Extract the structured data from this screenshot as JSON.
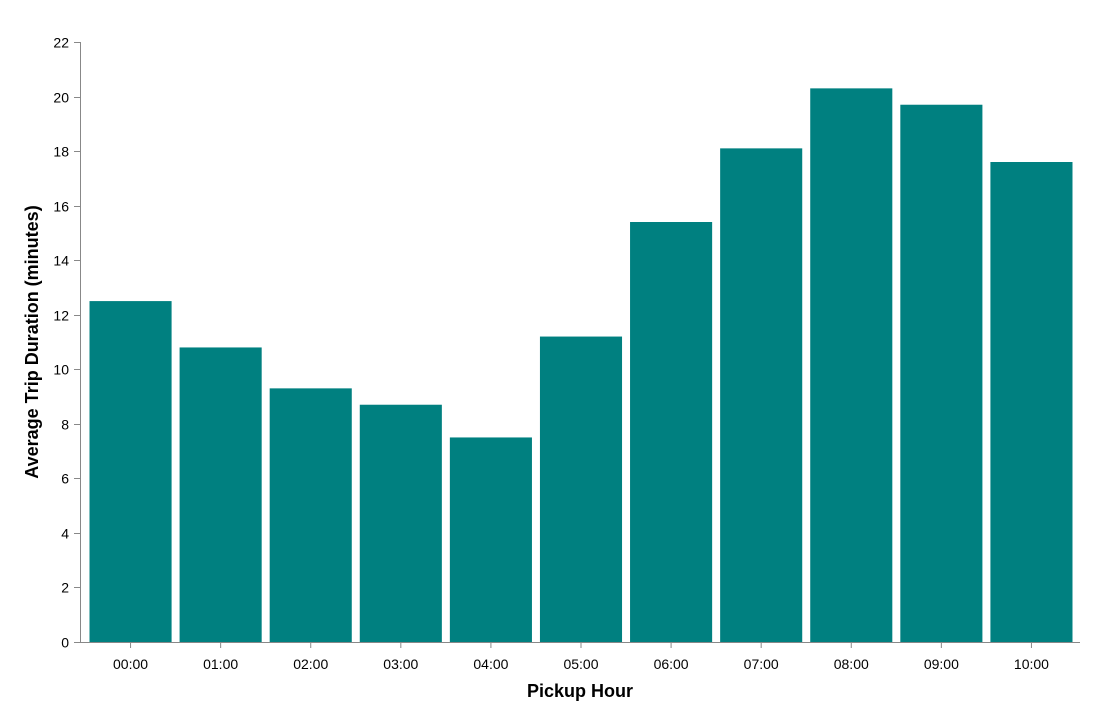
{
  "chart_data": {
    "type": "bar",
    "title": "",
    "xlabel": "Pickup Hour",
    "ylabel": "Average Trip Duration (minutes)",
    "categories": [
      "00:00",
      "01:00",
      "02:00",
      "03:00",
      "04:00",
      "05:00",
      "06:00",
      "07:00",
      "08:00",
      "09:00",
      "10:00"
    ],
    "values": [
      12.5,
      10.8,
      9.3,
      8.7,
      7.5,
      11.2,
      15.4,
      18.1,
      20.3,
      19.7,
      17.6
    ],
    "ylim": [
      0,
      22
    ],
    "yticks": [
      0,
      2,
      4,
      6,
      8,
      10,
      12,
      14,
      16,
      18,
      20,
      22
    ],
    "ytick_labels": [
      "0",
      "2",
      "4",
      "6",
      "8",
      "10",
      "12",
      "14",
      "16",
      "18",
      "20",
      "22"
    ],
    "grid": false,
    "legend": "none",
    "bar_color": "#008080",
    "axis_color": "#888888"
  }
}
